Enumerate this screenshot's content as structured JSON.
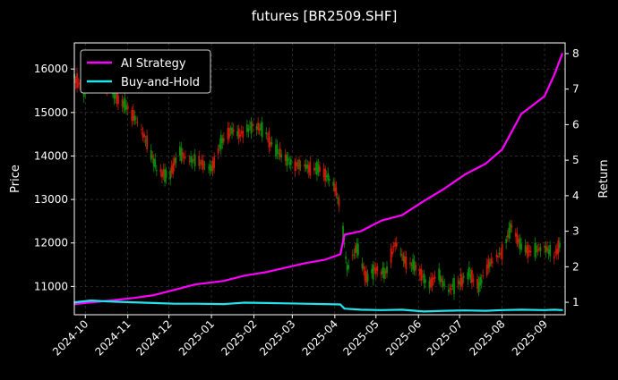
{
  "chart_data": {
    "type": "line",
    "title": "futures [BR2509.SHF]",
    "ylabel_left": "Price",
    "ylabel_right": "Return",
    "xlabel": "",
    "grid": true,
    "legend_position": "top-left",
    "ylim_left": [
      10350,
      16600
    ],
    "ylim_right": [
      0.65,
      8.3
    ],
    "yticks_left": [
      11000,
      12000,
      13000,
      14000,
      15000,
      16000
    ],
    "yticks_right": [
      1,
      2,
      3,
      4,
      5,
      6,
      7,
      8
    ],
    "xlim": [
      "2024-09-23",
      "2025-09-16"
    ],
    "xticks": [
      "2024-10-01",
      "2024-11-01",
      "2024-12-01",
      "2025-01-01",
      "2025-02-01",
      "2025-03-01",
      "2025-04-01",
      "2025-05-01",
      "2025-06-01",
      "2025-07-01",
      "2025-08-01",
      "2025-09-01"
    ],
    "xtick_labels": [
      "2024-10",
      "2024-11",
      "2024-12",
      "2025-01",
      "2025-02",
      "2025-03",
      "2025-04",
      "2025-05",
      "2025-06",
      "2025-07",
      "2025-08",
      "2025-09"
    ],
    "colors": {
      "background": "#000000",
      "ai_strategy": "#ff00ff",
      "buy_and_hold": "#22e5ee",
      "candle_up": "#0a8a0a",
      "candle_down": "#cc1a0a",
      "grid": "#444444",
      "axes": "#ffffff"
    },
    "series": [
      {
        "name": "AI Strategy",
        "axis": "right",
        "x": [
          "2024-09-23",
          "2024-10-05",
          "2024-10-20",
          "2024-11-05",
          "2024-11-20",
          "2024-12-05",
          "2024-12-20",
          "2025-01-10",
          "2025-01-25",
          "2025-02-10",
          "2025-02-25",
          "2025-03-10",
          "2025-03-25",
          "2025-04-05",
          "2025-04-08",
          "2025-04-20",
          "2025-05-05",
          "2025-05-20",
          "2025-06-05",
          "2025-06-20",
          "2025-07-05",
          "2025-07-20",
          "2025-08-01",
          "2025-08-15",
          "2025-09-01",
          "2025-09-08",
          "2025-09-14"
        ],
        "values": [
          0.95,
          1.0,
          1.05,
          1.12,
          1.2,
          1.35,
          1.5,
          1.6,
          1.75,
          1.85,
          1.98,
          2.1,
          2.2,
          2.35,
          2.9,
          3.0,
          3.3,
          3.45,
          3.85,
          4.2,
          4.6,
          4.9,
          5.3,
          6.3,
          6.8,
          7.4,
          8.0
        ]
      },
      {
        "name": "Buy-and-Hold",
        "axis": "right",
        "x": [
          "2024-09-23",
          "2024-10-05",
          "2024-10-20",
          "2024-11-05",
          "2024-11-20",
          "2024-12-05",
          "2024-12-20",
          "2025-01-10",
          "2025-01-25",
          "2025-02-10",
          "2025-02-25",
          "2025-03-10",
          "2025-03-25",
          "2025-04-05",
          "2025-04-08",
          "2025-04-20",
          "2025-05-05",
          "2025-05-20",
          "2025-06-05",
          "2025-06-20",
          "2025-07-05",
          "2025-07-20",
          "2025-08-01",
          "2025-08-15",
          "2025-09-01",
          "2025-09-08",
          "2025-09-14"
        ],
        "values": [
          1.0,
          1.05,
          1.02,
          1.0,
          0.98,
          0.96,
          0.96,
          0.95,
          0.99,
          0.98,
          0.97,
          0.96,
          0.95,
          0.94,
          0.82,
          0.79,
          0.78,
          0.79,
          0.74,
          0.76,
          0.77,
          0.76,
          0.78,
          0.79,
          0.78,
          0.79,
          0.78
        ]
      },
      {
        "name": "",
        "type": "candlestick",
        "axis": "left",
        "x": [
          "2024-09-23",
          "2024-10-01",
          "2024-10-08",
          "2024-10-15",
          "2024-10-22",
          "2024-11-01",
          "2024-11-08",
          "2024-11-15",
          "2024-11-22",
          "2024-12-01",
          "2024-12-08",
          "2024-12-15",
          "2024-12-22",
          "2025-01-01",
          "2025-01-08",
          "2025-01-15",
          "2025-01-22",
          "2025-02-01",
          "2025-02-08",
          "2025-02-15",
          "2025-02-22",
          "2025-03-01",
          "2025-03-08",
          "2025-03-15",
          "2025-03-22",
          "2025-04-01",
          "2025-04-05",
          "2025-04-10",
          "2025-04-17",
          "2025-04-24",
          "2025-05-01",
          "2025-05-08",
          "2025-05-15",
          "2025-05-22",
          "2025-06-01",
          "2025-06-08",
          "2025-06-15",
          "2025-06-22",
          "2025-07-01",
          "2025-07-08",
          "2025-07-15",
          "2025-07-22",
          "2025-08-01",
          "2025-08-08",
          "2025-08-15",
          "2025-08-22",
          "2025-09-01",
          "2025-09-08",
          "2025-09-14"
        ],
        "values": [
          15800,
          15500,
          15800,
          15700,
          15400,
          15100,
          14800,
          14300,
          13700,
          13500,
          14100,
          13900,
          13900,
          13700,
          14300,
          14600,
          14500,
          14700,
          14600,
          14200,
          14000,
          13800,
          13800,
          13700,
          13700,
          13300,
          12800,
          11400,
          11900,
          11200,
          11400,
          11300,
          12000,
          11600,
          11400,
          11000,
          11300,
          10900,
          11100,
          11300,
          11000,
          11500,
          11800,
          12400,
          11900,
          11800,
          11900,
          11700,
          12100
        ]
      }
    ]
  }
}
